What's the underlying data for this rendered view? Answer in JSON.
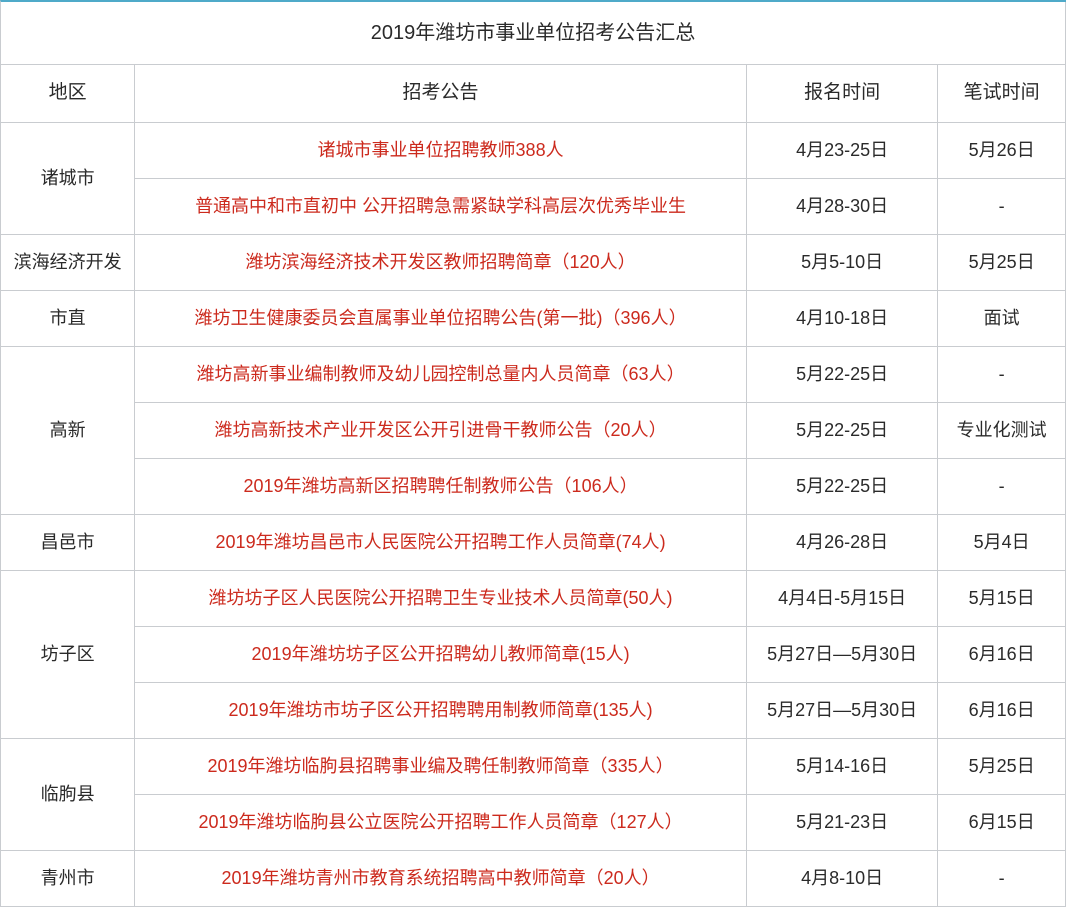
{
  "colors": {
    "accent_border": "#4faac9",
    "cell_border": "#c9ccd0",
    "link": "#cc2a1d",
    "text": "#2a2a2a",
    "bg": "#ffffff"
  },
  "title": "2019年潍坊市事业单位招考公告汇总",
  "headers": {
    "region": "地区",
    "announcement": "招考公告",
    "signup": "报名时间",
    "exam": "笔试时间"
  },
  "dash": "-",
  "regions": {
    "zhucheng": "诸城市",
    "binhai": "滨海经济开发",
    "shizhi": "市直",
    "gaoxin": "高新",
    "changyi": "昌邑市",
    "fangzi": "坊子区",
    "linqu": "临朐县",
    "qingzhou": "青州市"
  },
  "rows": {
    "zhucheng_1": {
      "ann": "诸城市事业单位招聘教师388人",
      "signup": "4月23-25日",
      "exam": "5月26日"
    },
    "zhucheng_2": {
      "ann": "普通高中和市直初中 公开招聘急需紧缺学科高层次优秀毕业生",
      "signup": "4月28-30日",
      "exam": "-"
    },
    "binhai_1": {
      "ann": "潍坊滨海经济技术开发区教师招聘简章（120人）",
      "signup": "5月5-10日",
      "exam": "5月25日"
    },
    "shizhi_1": {
      "ann": "潍坊卫生健康委员会直属事业单位招聘公告(第一批)（396人）",
      "signup": "4月10-18日",
      "exam": "面试"
    },
    "gaoxin_1": {
      "ann": "潍坊高新事业编制教师及幼儿园控制总量内人员简章（63人）",
      "signup": "5月22-25日",
      "exam": "-"
    },
    "gaoxin_2": {
      "ann": "潍坊高新技术产业开发区公开引进骨干教师公告（20人）",
      "signup": "5月22-25日",
      "exam": "专业化测试"
    },
    "gaoxin_3": {
      "ann": "2019年潍坊高新区招聘聘任制教师公告（106人）",
      "signup": "5月22-25日",
      "exam": "-"
    },
    "changyi_1": {
      "ann": "2019年潍坊昌邑市人民医院公开招聘工作人员简章(74人)",
      "signup": "4月26-28日",
      "exam": "5月4日"
    },
    "fangzi_1": {
      "ann": "潍坊坊子区人民医院公开招聘卫生专业技术人员简章(50人)",
      "signup": "4月4日-5月15日",
      "exam": "5月15日"
    },
    "fangzi_2": {
      "ann": "2019年潍坊坊子区公开招聘幼儿教师简章(15人)",
      "signup": "5月27日—5月30日",
      "exam": "6月16日"
    },
    "fangzi_3": {
      "ann": "2019年潍坊市坊子区公开招聘聘用制教师简章(135人)",
      "signup": "5月27日—5月30日",
      "exam": "6月16日"
    },
    "linqu_1": {
      "ann": "2019年潍坊临朐县招聘事业编及聘任制教师简章（335人）",
      "signup": "5月14-16日",
      "exam": "5月25日"
    },
    "linqu_2": {
      "ann": "2019年潍坊临朐县公立医院公开招聘工作人员简章（127人）",
      "signup": "5月21-23日",
      "exam": "6月15日"
    },
    "qingzhou_1": {
      "ann": "2019年潍坊青州市教育系统招聘高中教师简章（20人）",
      "signup": "4月8-10日",
      "exam": "-"
    }
  }
}
